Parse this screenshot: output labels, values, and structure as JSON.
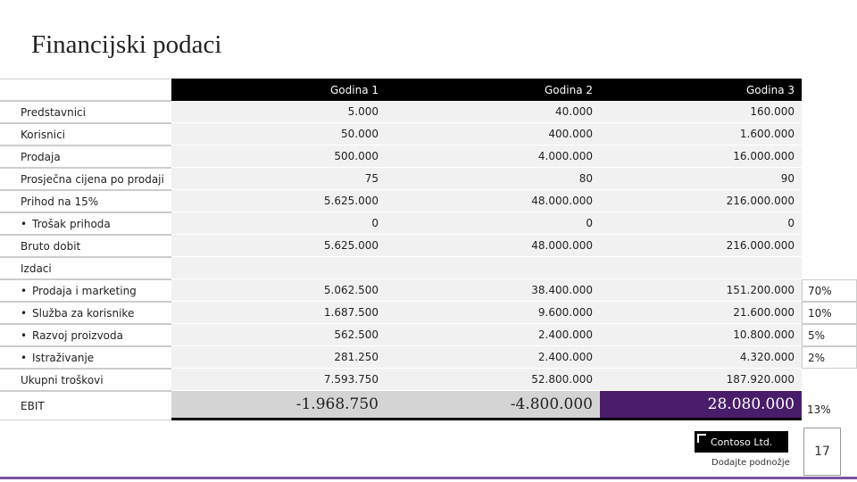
{
  "title": "Financijski podaci",
  "table": {
    "header": [
      "Godina 1",
      "Godina 2",
      "Godina 3"
    ],
    "rows": [
      {
        "label": "Predstavnici",
        "values": [
          "5.000",
          "40.000",
          "160.000"
        ]
      },
      {
        "label": "Korisnici",
        "values": [
          "50.000",
          "400.000",
          "1.600.000"
        ]
      },
      {
        "label": "Prodaja",
        "values": [
          "500.000",
          "4.000.000",
          "16.000.000"
        ]
      },
      {
        "label": "Prosječna cijena po prodaji",
        "values": [
          "75",
          "80",
          "90"
        ]
      },
      {
        "label": "Prihod na 15%",
        "values": [
          "5.625.000",
          "48.000.000",
          "216.000.000"
        ]
      },
      {
        "label": "Trošak prihoda",
        "bullet": true,
        "values": [
          "0",
          "0",
          "0"
        ]
      },
      {
        "label": "Bruto dobit",
        "values": [
          "5.625.000",
          "48.000.000",
          "216.000.000"
        ]
      },
      {
        "label": "Izdaci"
      },
      {
        "label": "Prodaja i marketing",
        "bullet": true,
        "values": [
          "5.062.500",
          "38.400.000",
          "151.200.000"
        ],
        "percent": "70%"
      },
      {
        "label": "Služba za korisnike",
        "bullet": true,
        "values": [
          "1.687.500",
          "9.600.000",
          "21.600.000"
        ],
        "percent": "10%"
      },
      {
        "label": "Razvoj proizvoda",
        "bullet": true,
        "values": [
          "562.500",
          "2.400.000",
          "10.800.000"
        ],
        "percent": "5%"
      },
      {
        "label": "Istraživanje",
        "bullet": true,
        "values": [
          "281.250",
          "2.400.000",
          "4.320.000"
        ],
        "percent": "2%"
      },
      {
        "label": "Ukupni troškovi",
        "values": [
          "7.593.750",
          "52.800.000",
          "187.920.000"
        ]
      },
      {
        "label": "EBIT",
        "values": [
          "-1.968.750",
          "-4.800.000",
          "28.080.000"
        ],
        "percent": "13%"
      }
    ]
  },
  "footer": {
    "company": "Contoso Ltd.",
    "text": "Dodajte podnožje",
    "page": "17"
  }
}
